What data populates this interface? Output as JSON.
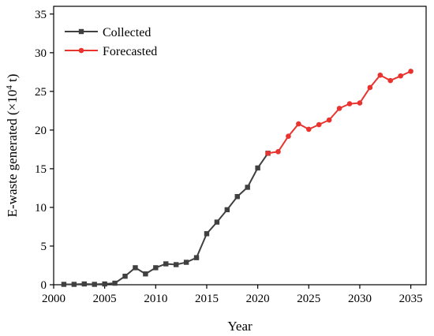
{
  "chart_data": {
    "type": "line",
    "xlabel": "Year",
    "ylabel_main": "E-waste generated (×10",
    "ylabel_sup": "4",
    "ylabel_unit": " t)",
    "xlim": [
      2000,
      2036.5
    ],
    "ylim": [
      0,
      36
    ],
    "x_ticks": [
      2000,
      2005,
      2010,
      2015,
      2020,
      2025,
      2030,
      2035
    ],
    "y_ticks": [
      0,
      5,
      10,
      15,
      20,
      25,
      30,
      35
    ],
    "grid": false,
    "legend_position": "top-left",
    "series": [
      {
        "name": "Collected",
        "color": "#404040",
        "marker": "square",
        "x": [
          2001,
          2002,
          2003,
          2004,
          2005,
          2006,
          2007,
          2008,
          2009,
          2010,
          2011,
          2012,
          2013,
          2014,
          2015,
          2016,
          2017,
          2018,
          2019,
          2020,
          2021
        ],
        "y": [
          0.05,
          0.05,
          0.1,
          0.05,
          0.1,
          0.2,
          1.1,
          2.2,
          1.4,
          2.2,
          2.7,
          2.6,
          2.9,
          3.5,
          6.6,
          8.1,
          9.7,
          11.4,
          12.6,
          15.1,
          17.0
        ]
      },
      {
        "name": "Forecasted",
        "color": "#e8332e",
        "marker": "circle",
        "x": [
          2021,
          2022,
          2023,
          2024,
          2025,
          2026,
          2027,
          2028,
          2029,
          2030,
          2031,
          2032,
          2033,
          2034,
          2035
        ],
        "y": [
          17.0,
          17.2,
          19.2,
          20.8,
          20.1,
          20.7,
          21.3,
          22.8,
          23.4,
          23.5,
          25.5,
          27.1,
          26.4,
          27.0,
          27.6
        ]
      }
    ]
  }
}
